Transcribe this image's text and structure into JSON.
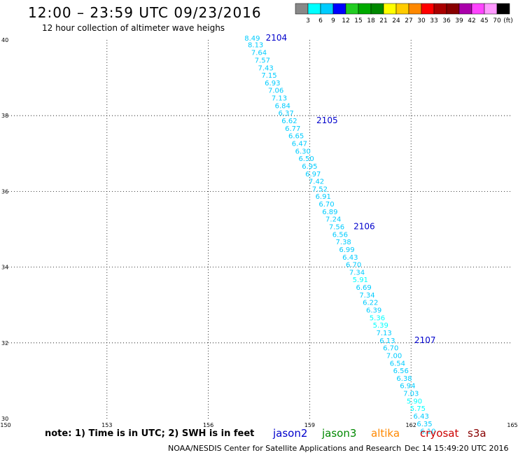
{
  "header": {
    "title": "12:00 – 23:59 UTC 09/23/2016",
    "subtitle": "12 hour collection of altimeter wave heighs"
  },
  "legend": {
    "colors": [
      "#888888",
      "#00ffff",
      "#00ccff",
      "#0000ff",
      "#22cc22",
      "#00aa00",
      "#008800",
      "#ffff00",
      "#ffcc00",
      "#ff8800",
      "#ff0000",
      "#aa0000",
      "#880000",
      "#aa00aa",
      "#ff44ff",
      "#ff99ff",
      "#000000"
    ],
    "labels": [
      "3",
      "6",
      "9",
      "12",
      "15",
      "18",
      "21",
      "24",
      "27",
      "30",
      "33",
      "36",
      "39",
      "42",
      "45",
      "70"
    ],
    "unit": "(ft)"
  },
  "axes": {
    "x_ticks": [
      "150",
      "153",
      "156",
      "159",
      "162",
      "165"
    ],
    "y_ticks": [
      "30",
      "32",
      "34",
      "36",
      "38",
      "40"
    ]
  },
  "tracks": [
    {
      "label": "2104",
      "label_at": [
        157.7,
        39.98
      ],
      "points": [
        [
          157.3,
          39.98,
          "8.49"
        ],
        [
          157.4,
          39.81,
          "8.13"
        ],
        [
          157.5,
          39.6,
          "7.64"
        ],
        [
          157.6,
          39.4,
          "7.57"
        ],
        [
          157.7,
          39.2,
          "7.43"
        ],
        [
          157.8,
          39.0,
          "7.15"
        ],
        [
          157.9,
          38.8,
          "6.93"
        ],
        [
          158.0,
          38.6,
          "7.06"
        ],
        [
          158.1,
          38.4,
          "7.13"
        ],
        [
          158.2,
          38.2,
          "6.84"
        ],
        [
          158.3,
          38.0,
          "6.37"
        ],
        [
          158.4,
          37.8,
          "6.62"
        ]
      ]
    },
    {
      "label": "2105",
      "label_at": [
        159.2,
        37.8
      ],
      "points": [
        [
          158.5,
          37.6,
          "6.77"
        ],
        [
          158.6,
          37.4,
          "6.65"
        ],
        [
          158.7,
          37.2,
          "6.47"
        ],
        [
          158.8,
          37.0,
          "6.30"
        ],
        [
          158.9,
          36.8,
          "6.50"
        ],
        [
          159.0,
          36.6,
          "6.95"
        ],
        [
          159.1,
          36.4,
          "6.97"
        ],
        [
          159.2,
          36.2,
          "7.42"
        ],
        [
          159.3,
          36.0,
          "7.52"
        ],
        [
          159.4,
          35.8,
          "6.91"
        ],
        [
          159.5,
          35.6,
          "6.70"
        ],
        [
          159.6,
          35.4,
          "6.89"
        ],
        [
          159.7,
          35.2,
          "7.24"
        ],
        [
          159.8,
          35.0,
          "7.56"
        ]
      ]
    },
    {
      "label": "2106",
      "label_at": [
        160.3,
        35.0
      ],
      "points": [
        [
          159.9,
          34.8,
          "6.56"
        ],
        [
          160.0,
          34.6,
          "7.38"
        ],
        [
          160.1,
          34.4,
          "6.99"
        ],
        [
          160.2,
          34.2,
          "6.43"
        ],
        [
          160.3,
          34.0,
          "6.70"
        ],
        [
          160.4,
          33.8,
          "7.34"
        ],
        [
          160.5,
          33.6,
          "5.91"
        ],
        [
          160.6,
          33.4,
          "6.69"
        ],
        [
          160.7,
          33.2,
          "7.34"
        ],
        [
          160.8,
          33.0,
          "6.22"
        ],
        [
          160.9,
          32.8,
          "6.39"
        ],
        [
          161.0,
          32.6,
          "5.36"
        ],
        [
          161.1,
          32.4,
          "5.39"
        ],
        [
          161.2,
          32.2,
          "7.13"
        ],
        [
          161.3,
          32.0,
          "6.13"
        ]
      ]
    },
    {
      "label": "2107",
      "label_at": [
        162.1,
        32.0
      ],
      "points": [
        [
          161.4,
          31.8,
          "6.70"
        ],
        [
          161.5,
          31.6,
          "7.00"
        ],
        [
          161.6,
          31.4,
          "6.54"
        ],
        [
          161.7,
          31.2,
          "6.56"
        ],
        [
          161.8,
          31.0,
          "6.38"
        ],
        [
          161.9,
          30.8,
          "6.94"
        ],
        [
          162.0,
          30.6,
          "7.03"
        ],
        [
          162.1,
          30.4,
          "5.90"
        ],
        [
          162.2,
          30.2,
          "5.75"
        ],
        [
          162.3,
          30.0,
          "6.43"
        ],
        [
          162.4,
          29.8,
          "6.35"
        ],
        [
          162.5,
          29.6,
          "6.10"
        ]
      ]
    }
  ],
  "note": "note: 1) Time is in UTC; 2) SWH is in feet",
  "satellites": [
    {
      "name": "jason2",
      "color": "#0000cc"
    },
    {
      "name": "jason3",
      "color": "#008800"
    },
    {
      "name": "altika",
      "color": "#ff8800"
    },
    {
      "name": "cryosat",
      "color": "#cc0000"
    },
    {
      "name": "s3a",
      "color": "#880000"
    }
  ],
  "footer": {
    "credit": "NOAA/NESDIS Center for Satellite Applications and Research",
    "timestamp": "Dec 14 15:49:20 UTC 2016"
  }
}
